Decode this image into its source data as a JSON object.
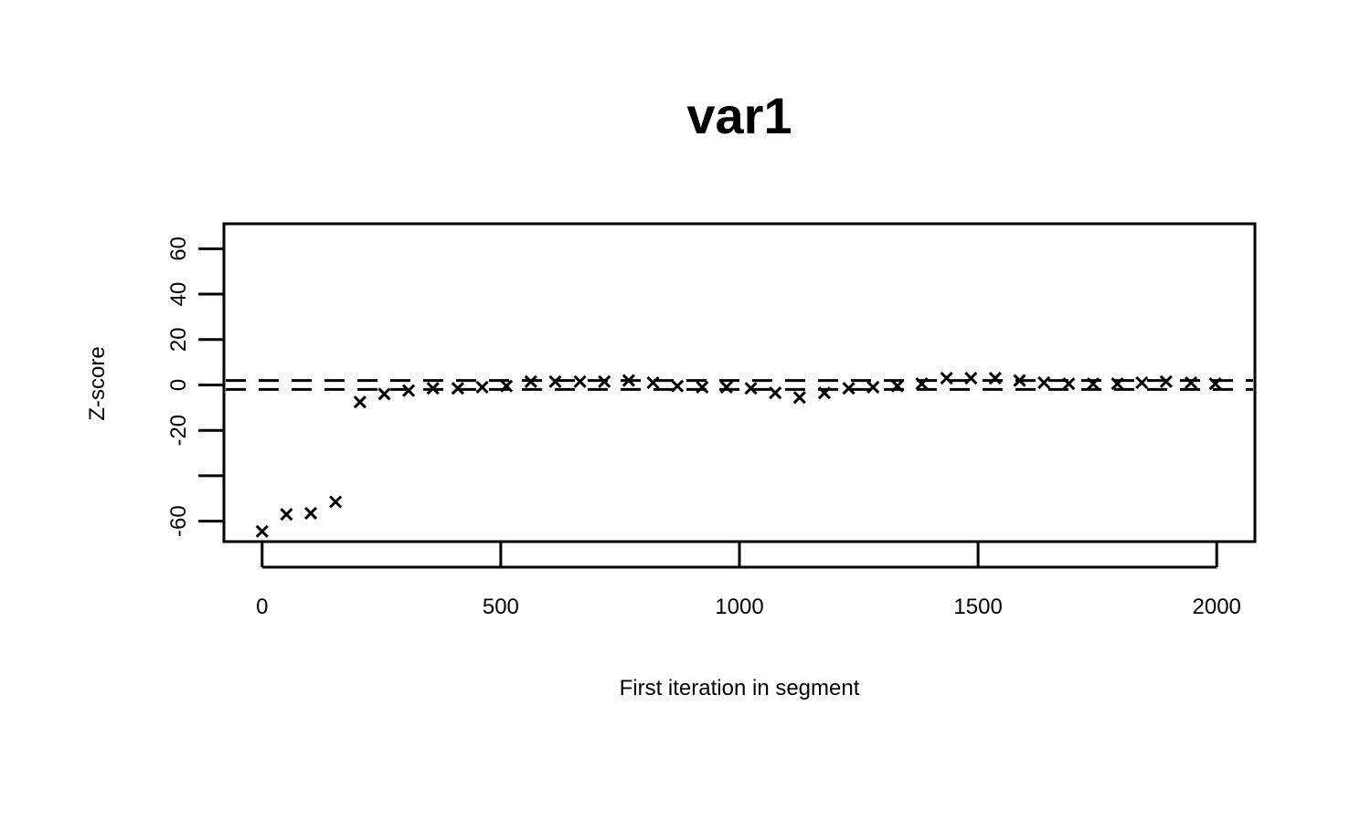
{
  "chart_data": {
    "type": "scatter",
    "title": "var1",
    "xlabel": "First iteration in segment",
    "ylabel": "Z-score",
    "xlim": [
      -80,
      2080
    ],
    "ylim": [
      -69,
      71
    ],
    "x_ticks": [
      0,
      500,
      1000,
      1500,
      2000
    ],
    "y_ticks": [
      -60,
      -40,
      -20,
      0,
      20,
      40,
      60
    ],
    "y_tick_labels": [
      "-60",
      "",
      "-20",
      "0",
      "20",
      "40",
      "60"
    ],
    "reference_lines": [
      1.96,
      -1.96
    ],
    "marker": "x",
    "series": [
      {
        "x": [
          0,
          51,
          102,
          154,
          205,
          256,
          307,
          358,
          410,
          461,
          512,
          563,
          614,
          666,
          717,
          768,
          819,
          870,
          922,
          973,
          1024,
          1075,
          1126,
          1178,
          1229,
          1280,
          1331,
          1382,
          1434,
          1485,
          1536,
          1587,
          1638,
          1690,
          1741,
          1792,
          1843,
          1894,
          1946,
          1997
        ],
        "y": [
          -64.5,
          -57.0,
          -56.5,
          -51.5,
          -7.5,
          -4.0,
          -2.5,
          -1.5,
          -1.5,
          -1.0,
          -0.5,
          1.5,
          1.5,
          1.5,
          1.5,
          2.0,
          1.0,
          -0.5,
          -1.0,
          -1.0,
          -1.5,
          -3.5,
          -5.5,
          -3.5,
          -1.5,
          -1.0,
          -0.5,
          0.5,
          3.0,
          3.0,
          3.0,
          2.0,
          1.0,
          0.5,
          0.5,
          0.5,
          1.0,
          1.5,
          1.0,
          0.5
        ]
      }
    ]
  }
}
